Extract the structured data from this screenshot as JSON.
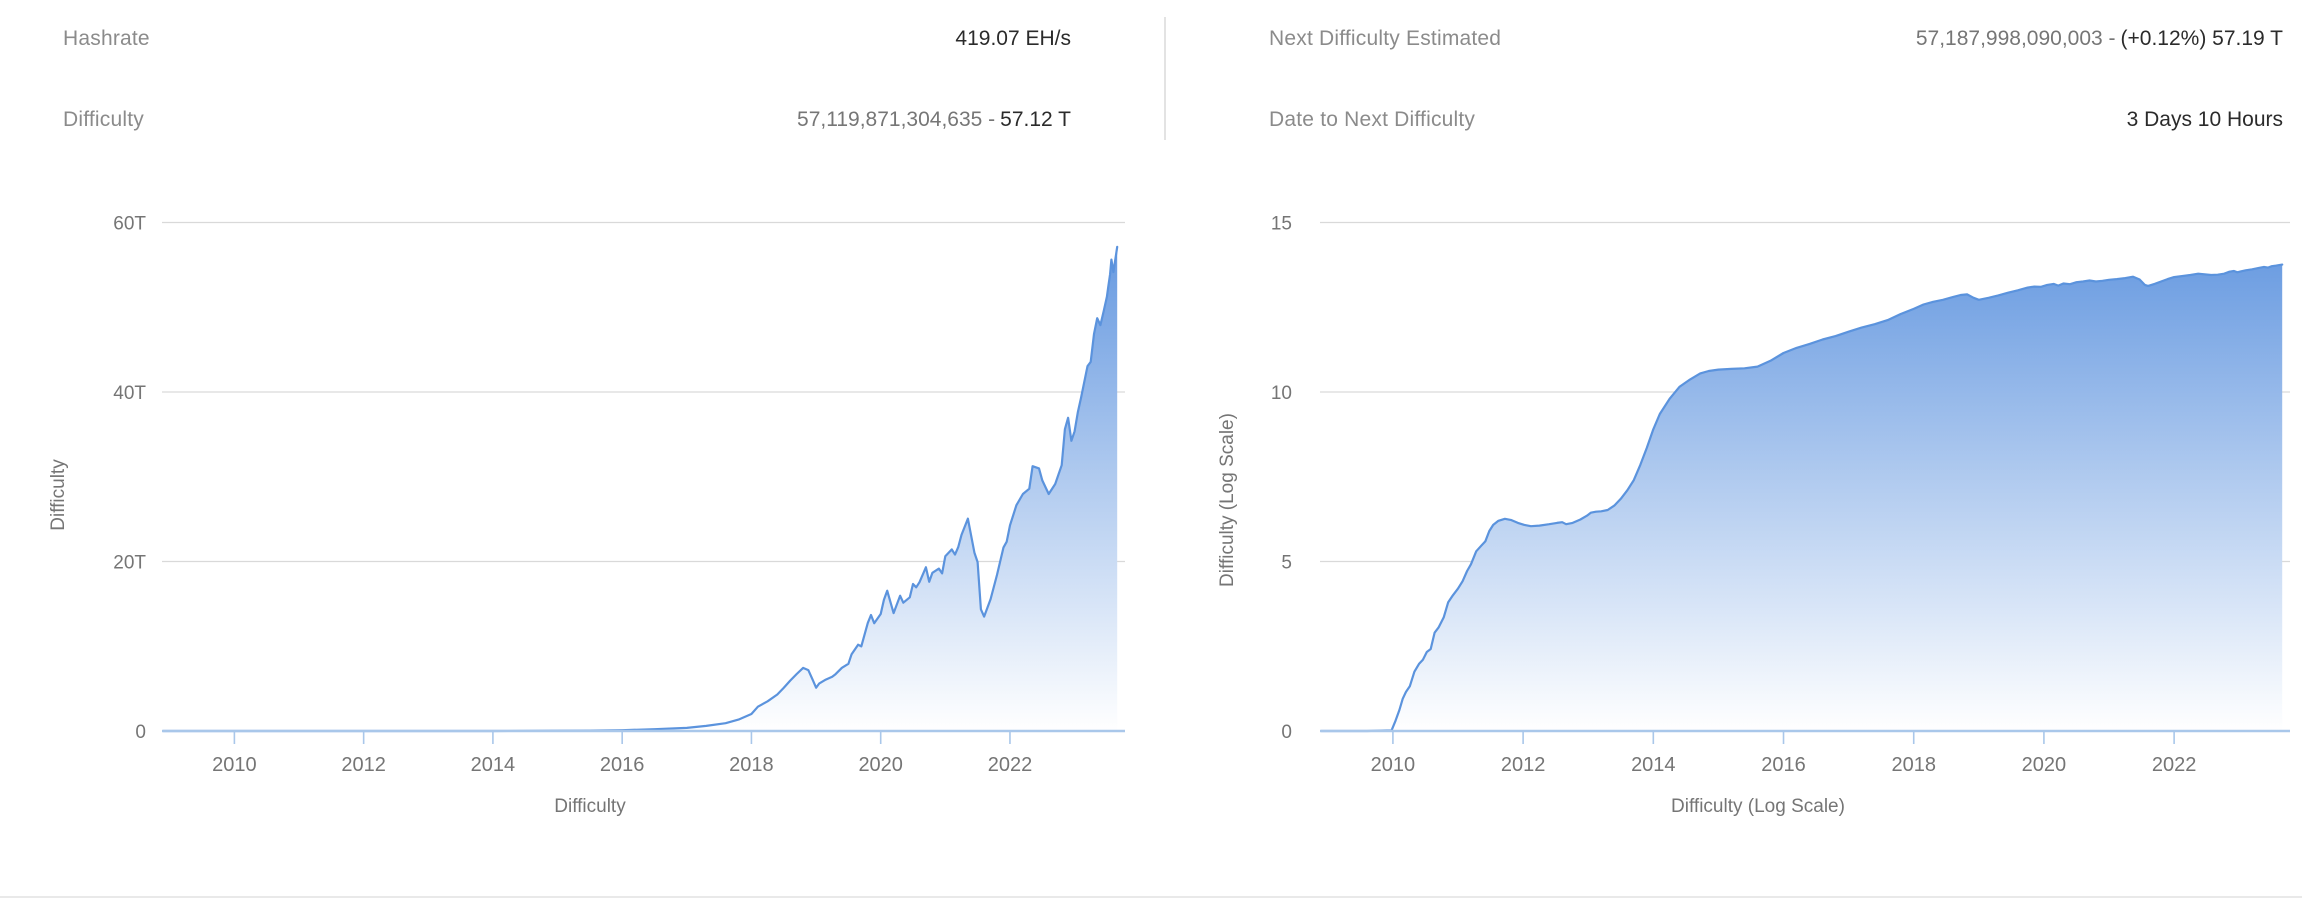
{
  "stats": {
    "left": [
      {
        "label": "Hashrate",
        "value_muted": "",
        "value_strong": "419.07 EH/s"
      },
      {
        "label": "Difficulty",
        "value_muted": "57,119,871,304,635 -",
        "value_strong": "57.12 T"
      }
    ],
    "right": [
      {
        "label": "Next Difficulty Estimated",
        "value_muted": "57,187,998,090,003 -",
        "value_strong": "(+0.12%) 57.19 T"
      },
      {
        "label": "Date to Next Difficulty",
        "value_muted": "",
        "value_strong": "3 Days 10 Hours"
      }
    ]
  },
  "colors": {
    "line": "#5b93dd",
    "fill_top": "#6095df",
    "fill_bottom": "#ffffff",
    "grid": "#d9d9d9",
    "axis_line": "#a9c7ea",
    "tick_text": "#757575",
    "divider": "#e3e3e3"
  },
  "chart_data": [
    {
      "type": "area",
      "name": "difficulty-linear",
      "xlabel": "Difficulty",
      "ylabel": "Difficulty",
      "xlim": [
        2008.88,
        2023.78
      ],
      "ylim": [
        0,
        60
      ],
      "x_ticks": [
        2010,
        2012,
        2014,
        2016,
        2018,
        2020,
        2022
      ],
      "y_ticks": [
        {
          "v": 0,
          "label": "0"
        },
        {
          "v": 20,
          "label": "20T"
        },
        {
          "v": 40,
          "label": "40T"
        },
        {
          "v": 60,
          "label": "60T"
        }
      ],
      "unit": "T (trillions)",
      "grid": true,
      "points": [
        [
          2008.9,
          0
        ],
        [
          2010,
          0.0001
        ],
        [
          2011,
          1e-06
        ],
        [
          2012,
          1.5e-06
        ],
        [
          2013,
          1e-05
        ],
        [
          2014,
          0.002
        ],
        [
          2014.9,
          0.04
        ],
        [
          2015.5,
          0.05
        ],
        [
          2016.0,
          0.1
        ],
        [
          2016.5,
          0.21
        ],
        [
          2017.0,
          0.36
        ],
        [
          2017.3,
          0.6
        ],
        [
          2017.6,
          0.92
        ],
        [
          2017.8,
          1.35
        ],
        [
          2018.0,
          2.0
        ],
        [
          2018.1,
          2.87
        ],
        [
          2018.25,
          3.51
        ],
        [
          2018.4,
          4.31
        ],
        [
          2018.5,
          5.08
        ],
        [
          2018.6,
          5.95
        ],
        [
          2018.7,
          6.73
        ],
        [
          2018.8,
          7.45
        ],
        [
          2018.88,
          7.18
        ],
        [
          2018.95,
          6.0
        ],
        [
          2019.0,
          5.11
        ],
        [
          2019.05,
          5.62
        ],
        [
          2019.15,
          6.07
        ],
        [
          2019.25,
          6.39
        ],
        [
          2019.3,
          6.7
        ],
        [
          2019.4,
          7.46
        ],
        [
          2019.5,
          7.93
        ],
        [
          2019.55,
          9.06
        ],
        [
          2019.65,
          10.18
        ],
        [
          2019.7,
          9.98
        ],
        [
          2019.8,
          12.76
        ],
        [
          2019.85,
          13.69
        ],
        [
          2019.9,
          12.72
        ],
        [
          2020.0,
          13.8
        ],
        [
          2020.05,
          15.47
        ],
        [
          2020.1,
          16.55
        ],
        [
          2020.2,
          13.91
        ],
        [
          2020.3,
          15.96
        ],
        [
          2020.35,
          15.14
        ],
        [
          2020.45,
          15.78
        ],
        [
          2020.5,
          17.35
        ],
        [
          2020.55,
          16.95
        ],
        [
          2020.6,
          17.56
        ],
        [
          2020.7,
          19.31
        ],
        [
          2020.75,
          17.6
        ],
        [
          2020.8,
          18.67
        ],
        [
          2020.9,
          19.16
        ],
        [
          2020.95,
          18.6
        ],
        [
          2021.0,
          20.61
        ],
        [
          2021.1,
          21.43
        ],
        [
          2021.15,
          20.82
        ],
        [
          2021.2,
          21.72
        ],
        [
          2021.25,
          23.14
        ],
        [
          2021.35,
          25.05
        ],
        [
          2021.45,
          21.05
        ],
        [
          2021.5,
          19.93
        ],
        [
          2021.55,
          14.36
        ],
        [
          2021.6,
          13.5
        ],
        [
          2021.7,
          15.56
        ],
        [
          2021.8,
          18.42
        ],
        [
          2021.9,
          21.66
        ],
        [
          2021.95,
          22.34
        ],
        [
          2022.0,
          24.27
        ],
        [
          2022.1,
          26.64
        ],
        [
          2022.2,
          27.97
        ],
        [
          2022.3,
          28.59
        ],
        [
          2022.35,
          31.25
        ],
        [
          2022.45,
          30.98
        ],
        [
          2022.5,
          29.57
        ],
        [
          2022.6,
          27.97
        ],
        [
          2022.7,
          29.15
        ],
        [
          2022.8,
          31.36
        ],
        [
          2022.85,
          35.61
        ],
        [
          2022.9,
          36.95
        ],
        [
          2022.95,
          34.24
        ],
        [
          2023.0,
          35.36
        ],
        [
          2023.05,
          37.59
        ],
        [
          2023.1,
          39.35
        ],
        [
          2023.2,
          43.05
        ],
        [
          2023.25,
          43.55
        ],
        [
          2023.3,
          46.84
        ],
        [
          2023.35,
          48.71
        ],
        [
          2023.4,
          47.89
        ],
        [
          2023.45,
          49.55
        ],
        [
          2023.5,
          51.23
        ],
        [
          2023.52,
          52.35
        ],
        [
          2023.55,
          53.91
        ],
        [
          2023.57,
          55.62
        ],
        [
          2023.6,
          54.15
        ],
        [
          2023.63,
          55.62
        ],
        [
          2023.66,
          57.12
        ]
      ]
    },
    {
      "type": "area",
      "name": "difficulty-log",
      "xlabel": "Difficulty (Log Scale)",
      "ylabel": "Difficulty (Log Scale)",
      "xlim": [
        2008.88,
        2023.78
      ],
      "ylim": [
        0,
        15
      ],
      "x_ticks": [
        2010,
        2012,
        2014,
        2016,
        2018,
        2020,
        2022
      ],
      "y_ticks": [
        {
          "v": 0,
          "label": "0"
        },
        {
          "v": 5,
          "label": "5"
        },
        {
          "v": 10,
          "label": "10"
        },
        {
          "v": 15,
          "label": "15"
        }
      ],
      "unit": "log10(difficulty)",
      "grid": true,
      "points": [
        [
          2008.9,
          0
        ],
        [
          2009.6,
          0
        ],
        [
          2009.98,
          0.02
        ],
        [
          2010.04,
          0.3
        ],
        [
          2010.1,
          0.62
        ],
        [
          2010.15,
          0.95
        ],
        [
          2010.2,
          1.15
        ],
        [
          2010.26,
          1.32
        ],
        [
          2010.33,
          1.75
        ],
        [
          2010.4,
          1.98
        ],
        [
          2010.46,
          2.1
        ],
        [
          2010.52,
          2.33
        ],
        [
          2010.58,
          2.42
        ],
        [
          2010.64,
          2.9
        ],
        [
          2010.7,
          3.05
        ],
        [
          2010.78,
          3.35
        ],
        [
          2010.85,
          3.8
        ],
        [
          2010.92,
          4.0
        ],
        [
          2011.0,
          4.2
        ],
        [
          2011.07,
          4.42
        ],
        [
          2011.14,
          4.72
        ],
        [
          2011.2,
          4.92
        ],
        [
          2011.28,
          5.3
        ],
        [
          2011.35,
          5.45
        ],
        [
          2011.42,
          5.6
        ],
        [
          2011.48,
          5.9
        ],
        [
          2011.54,
          6.08
        ],
        [
          2011.62,
          6.2
        ],
        [
          2011.72,
          6.26
        ],
        [
          2011.82,
          6.22
        ],
        [
          2011.92,
          6.14
        ],
        [
          2012.02,
          6.08
        ],
        [
          2012.12,
          6.04
        ],
        [
          2012.25,
          6.06
        ],
        [
          2012.4,
          6.1
        ],
        [
          2012.52,
          6.14
        ],
        [
          2012.6,
          6.16
        ],
        [
          2012.66,
          6.1
        ],
        [
          2012.76,
          6.14
        ],
        [
          2012.88,
          6.24
        ],
        [
          2012.98,
          6.35
        ],
        [
          2013.04,
          6.44
        ],
        [
          2013.12,
          6.47
        ],
        [
          2013.2,
          6.48
        ],
        [
          2013.3,
          6.52
        ],
        [
          2013.4,
          6.65
        ],
        [
          2013.5,
          6.85
        ],
        [
          2013.6,
          7.1
        ],
        [
          2013.7,
          7.4
        ],
        [
          2013.8,
          7.85
        ],
        [
          2013.9,
          8.35
        ],
        [
          2014.0,
          8.9
        ],
        [
          2014.1,
          9.35
        ],
        [
          2014.25,
          9.8
        ],
        [
          2014.4,
          10.15
        ],
        [
          2014.55,
          10.35
        ],
        [
          2014.72,
          10.55
        ],
        [
          2014.85,
          10.62
        ],
        [
          2015.0,
          10.66
        ],
        [
          2015.2,
          10.68
        ],
        [
          2015.4,
          10.7
        ],
        [
          2015.6,
          10.75
        ],
        [
          2015.8,
          10.92
        ],
        [
          2016.0,
          11.15
        ],
        [
          2016.2,
          11.3
        ],
        [
          2016.4,
          11.42
        ],
        [
          2016.6,
          11.55
        ],
        [
          2016.8,
          11.65
        ],
        [
          2017.0,
          11.78
        ],
        [
          2017.2,
          11.9
        ],
        [
          2017.4,
          12.0
        ],
        [
          2017.6,
          12.12
        ],
        [
          2017.8,
          12.3
        ],
        [
          2018.0,
          12.45
        ],
        [
          2018.15,
          12.58
        ],
        [
          2018.3,
          12.66
        ],
        [
          2018.45,
          12.72
        ],
        [
          2018.6,
          12.8
        ],
        [
          2018.72,
          12.86
        ],
        [
          2018.82,
          12.88
        ],
        [
          2018.92,
          12.78
        ],
        [
          2019.0,
          12.72
        ],
        [
          2019.15,
          12.78
        ],
        [
          2019.3,
          12.85
        ],
        [
          2019.45,
          12.93
        ],
        [
          2019.6,
          13.0
        ],
        [
          2019.75,
          13.08
        ],
        [
          2019.85,
          13.11
        ],
        [
          2019.95,
          13.1
        ],
        [
          2020.05,
          13.16
        ],
        [
          2020.15,
          13.19
        ],
        [
          2020.22,
          13.14
        ],
        [
          2020.3,
          13.2
        ],
        [
          2020.4,
          13.18
        ],
        [
          2020.5,
          13.24
        ],
        [
          2020.6,
          13.26
        ],
        [
          2020.7,
          13.29
        ],
        [
          2020.8,
          13.26
        ],
        [
          2020.9,
          13.28
        ],
        [
          2021.0,
          13.31
        ],
        [
          2021.12,
          13.33
        ],
        [
          2021.25,
          13.36
        ],
        [
          2021.37,
          13.4
        ],
        [
          2021.47,
          13.32
        ],
        [
          2021.55,
          13.16
        ],
        [
          2021.6,
          13.13
        ],
        [
          2021.7,
          13.19
        ],
        [
          2021.8,
          13.26
        ],
        [
          2021.9,
          13.33
        ],
        [
          2022.0,
          13.39
        ],
        [
          2022.12,
          13.42
        ],
        [
          2022.25,
          13.45
        ],
        [
          2022.37,
          13.49
        ],
        [
          2022.47,
          13.47
        ],
        [
          2022.57,
          13.45
        ],
        [
          2022.67,
          13.46
        ],
        [
          2022.77,
          13.49
        ],
        [
          2022.85,
          13.55
        ],
        [
          2022.92,
          13.57
        ],
        [
          2022.97,
          13.53
        ],
        [
          2023.03,
          13.56
        ],
        [
          2023.1,
          13.59
        ],
        [
          2023.2,
          13.62
        ],
        [
          2023.3,
          13.66
        ],
        [
          2023.38,
          13.69
        ],
        [
          2023.44,
          13.67
        ],
        [
          2023.5,
          13.71
        ],
        [
          2023.57,
          13.73
        ],
        [
          2023.66,
          13.757
        ]
      ]
    }
  ]
}
